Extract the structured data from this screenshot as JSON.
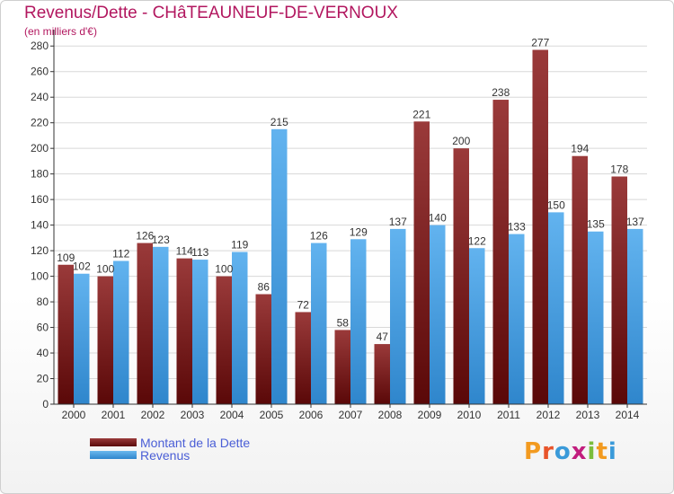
{
  "header": {
    "title": "Revenus/Dette - CHâTEAUNEUF-DE-VERNOUX",
    "subtitle": "(en milliers d'€)"
  },
  "legend": {
    "dette_label": "Montant de la Dette",
    "revenus_label": "Revenus"
  },
  "logo": {
    "text": "Proxiti",
    "letters": [
      "P",
      "r",
      "o",
      "x",
      "i",
      "t",
      "i"
    ],
    "colors": [
      "#f29a1f",
      "#e8542a",
      "#3a9ad9",
      "#c21e7e",
      "#7bbd3c",
      "#f29a1f",
      "#3a9ad9"
    ]
  },
  "colors": {
    "dette": "#7a1f1f",
    "revenus": "#3f9be3",
    "grid": "#d8d8d8",
    "axis": "#333333"
  },
  "chart_data": {
    "type": "bar",
    "title": "Revenus/Dette - CHâTEAUNEUF-DE-VERNOUX",
    "subtitle": "(en milliers d'€)",
    "categories": [
      "2000",
      "2001",
      "2002",
      "2003",
      "2004",
      "2005",
      "2006",
      "2007",
      "2008",
      "2009",
      "2010",
      "2011",
      "2012",
      "2013",
      "2014"
    ],
    "series": [
      {
        "name": "Montant de la Dette",
        "values": [
          109,
          100,
          126,
          114,
          100,
          86,
          72,
          58,
          47,
          221,
          200,
          238,
          277,
          194,
          178
        ]
      },
      {
        "name": "Revenus",
        "values": [
          102,
          112,
          123,
          113,
          119,
          215,
          126,
          129,
          137,
          140,
          122,
          133,
          150,
          135,
          137
        ]
      }
    ],
    "ylim": [
      0,
      290
    ],
    "yticks": [
      0,
      20,
      40,
      60,
      80,
      100,
      120,
      140,
      160,
      180,
      200,
      220,
      240,
      260,
      280
    ],
    "grid": true,
    "legend_position": "bottom-left"
  }
}
